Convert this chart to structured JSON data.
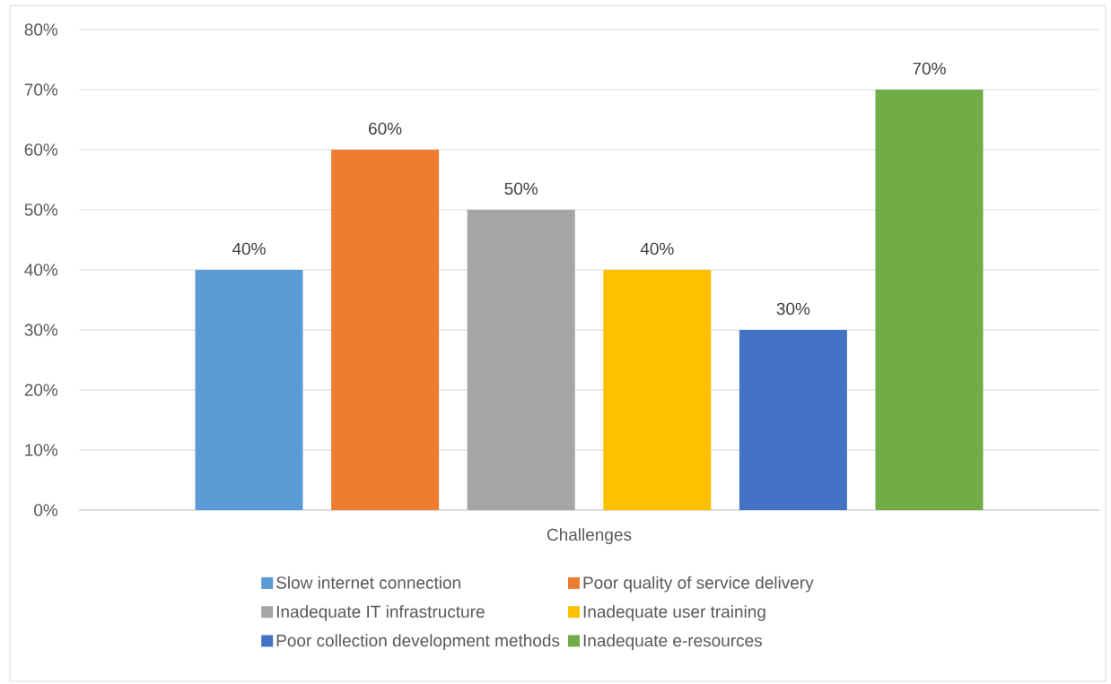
{
  "chart_data": {
    "type": "bar",
    "categories": [
      "Challenges"
    ],
    "series": [
      {
        "name": "Slow internet connection",
        "color": "#5b9bd5",
        "values": [
          40
        ],
        "value_labels": [
          "40%"
        ]
      },
      {
        "name": "Poor quality of service delivery",
        "color": "#ed7d31",
        "values": [
          60
        ],
        "value_labels": [
          "60%"
        ]
      },
      {
        "name": "Inadequate IT infrastructure",
        "color": "#a5a5a5",
        "values": [
          50
        ],
        "value_labels": [
          "50%"
        ]
      },
      {
        "name": "Inadequate user training",
        "color": "#ffc000",
        "values": [
          40
        ],
        "value_labels": [
          "40%"
        ]
      },
      {
        "name": "Poor collection development methods",
        "color": "#4472c4",
        "values": [
          30
        ],
        "value_labels": [
          "30%"
        ]
      },
      {
        "name": "Inadequate e-resources",
        "color": "#70ad47",
        "values": [
          70
        ],
        "value_labels": [
          "70%"
        ]
      }
    ],
    "ylim": [
      0,
      80
    ],
    "yticks": [
      {
        "value": 0,
        "label": "0%"
      },
      {
        "value": 10,
        "label": "10%"
      },
      {
        "value": 20,
        "label": "20%"
      },
      {
        "value": 30,
        "label": "30%"
      },
      {
        "value": 40,
        "label": "40%"
      },
      {
        "value": 50,
        "label": "50%"
      },
      {
        "value": 60,
        "label": "60%"
      },
      {
        "value": 70,
        "label": "70%"
      },
      {
        "value": 80,
        "label": "80%"
      }
    ],
    "grid": "y",
    "legend": "bottom"
  }
}
